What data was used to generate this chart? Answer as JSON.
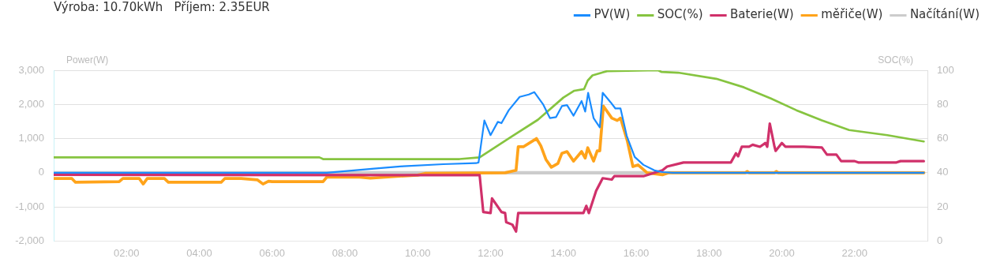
{
  "chart_data": {
    "type": "line",
    "title": "Výroba: 10.70kWh   Příjem: 2.35EUR",
    "ylabel": "Power(W)",
    "y2label": "SOC(%)",
    "xlim": [
      0,
      24
    ],
    "xticks": [
      {
        "value": 2,
        "label": "02:00"
      },
      {
        "value": 4,
        "label": "04:00"
      },
      {
        "value": 6,
        "label": "06:00"
      },
      {
        "value": 8,
        "label": "08:00"
      },
      {
        "value": 10,
        "label": "10:00"
      },
      {
        "value": 12,
        "label": "12:00"
      },
      {
        "value": 14,
        "label": "14:00"
      },
      {
        "value": 16,
        "label": "16:00"
      },
      {
        "value": 18,
        "label": "18:00"
      },
      {
        "value": 20,
        "label": "20:00"
      },
      {
        "value": 22,
        "label": "22:00"
      }
    ],
    "ylim": [
      -2000,
      3000
    ],
    "yticks": [
      {
        "value": -2000,
        "label": "-2,000"
      },
      {
        "value": -1000,
        "label": "-1,000"
      },
      0,
      {
        "value": 1000,
        "label": "1,000"
      },
      {
        "value": 2000,
        "label": "2,000"
      },
      {
        "value": 3000,
        "label": "3,000"
      }
    ],
    "y2lim": [
      0,
      100
    ],
    "y2ticks": [
      0,
      20,
      40,
      60,
      80,
      100
    ],
    "grid": "y",
    "legend": "top right",
    "marker": "none",
    "line_style": "solid",
    "series": [
      {
        "name": "PV(W)",
        "color": "#1a8cff",
        "x": [
          0,
          7.5,
          8.8,
          9.6,
          10.7,
          11.6,
          11.67,
          11.83,
          12.0,
          12.2,
          12.3,
          12.5,
          12.8,
          13.05,
          13.2,
          13.45,
          13.63,
          13.8,
          13.96,
          14.1,
          14.28,
          14.5,
          14.6,
          14.68,
          14.83,
          15.0,
          15.08,
          15.3,
          15.43,
          15.57,
          15.74,
          15.96,
          16.2,
          16.5,
          16.72,
          17.0,
          23.9
        ],
        "values": [
          0,
          0,
          120,
          190,
          250,
          280,
          300,
          1530,
          1100,
          1490,
          1450,
          1830,
          2220,
          2290,
          2360,
          1990,
          1600,
          1630,
          1950,
          1980,
          1670,
          2100,
          1790,
          2340,
          1600,
          1330,
          2340,
          2060,
          1880,
          1880,
          1080,
          460,
          230,
          70,
          20,
          0,
          0
        ]
      },
      {
        "name": "SOC(%)",
        "color": "#86c440",
        "axis": "y2",
        "x": [
          0,
          7.3,
          7.4,
          11.15,
          11.7,
          12.6,
          13.3,
          14.0,
          14.3,
          14.57,
          14.67,
          14.8,
          15.2,
          16.6,
          16.7,
          17.15,
          18.2,
          18.96,
          19.7,
          20.4,
          21.1,
          21.85,
          22.9,
          23.9
        ],
        "values": [
          49,
          49,
          48,
          48,
          49,
          61.5,
          71,
          84,
          88,
          89,
          94,
          97,
          99.5,
          100,
          99,
          98.6,
          95,
          90,
          83.5,
          76.6,
          70.7,
          65,
          62,
          58.3
        ]
      },
      {
        "name": "Baterie(W)",
        "color": "#d0306a",
        "x": [
          0,
          11.7,
          11.8,
          12.0,
          12.04,
          12.3,
          12.4,
          12.43,
          12.6,
          12.7,
          12.76,
          13.3,
          14.55,
          14.63,
          14.7,
          14.9,
          15.08,
          15.33,
          15.4,
          16.2,
          16.72,
          16.85,
          17.3,
          18.6,
          18.74,
          18.8,
          18.9,
          19.1,
          19.2,
          19.4,
          19.55,
          19.6,
          19.67,
          19.8,
          19.83,
          20.0,
          20.1,
          20.6,
          21.1,
          21.24,
          21.5,
          21.63,
          22.0,
          22.1,
          23.15,
          23.26,
          23.9
        ],
        "values": [
          -60,
          -70,
          -1150,
          -1180,
          -750,
          -1150,
          -1180,
          -1450,
          -1520,
          -1720,
          -1180,
          -1180,
          -1180,
          -970,
          -1180,
          -530,
          -160,
          -200,
          -100,
          -100,
          70,
          180,
          300,
          300,
          570,
          480,
          760,
          760,
          820,
          760,
          870,
          760,
          1440,
          760,
          640,
          870,
          760,
          760,
          740,
          530,
          530,
          340,
          340,
          300,
          300,
          340,
          340
        ]
      },
      {
        "name": "měřiče(W)",
        "color": "#ffa31a",
        "x": [
          0,
          0.5,
          0.6,
          1.8,
          1.9,
          2.35,
          2.46,
          2.57,
          3.04,
          3.15,
          4.6,
          4.7,
          5.15,
          5.6,
          5.75,
          5.9,
          6.0,
          7.4,
          7.5,
          8.4,
          8.7,
          9.5,
          10.0,
          10.2,
          12.4,
          12.7,
          12.76,
          12.9,
          13.26,
          13.38,
          13.52,
          13.67,
          13.85,
          13.96,
          14.1,
          14.28,
          14.5,
          14.6,
          14.67,
          14.83,
          14.93,
          15.0,
          15.1,
          15.33,
          15.48,
          15.57,
          15.76,
          15.91,
          16.05,
          16.3,
          16.72,
          16.9,
          19.0,
          19.05,
          19.1,
          19.8,
          19.85,
          19.9,
          23.9
        ],
        "values": [
          -170,
          -170,
          -280,
          -260,
          -170,
          -170,
          -330,
          -170,
          -170,
          -280,
          -280,
          -170,
          -170,
          -210,
          -330,
          -250,
          -260,
          -260,
          -130,
          -130,
          -160,
          -100,
          -70,
          -20,
          0,
          70,
          760,
          760,
          1000,
          790,
          390,
          160,
          270,
          570,
          620,
          340,
          620,
          430,
          730,
          340,
          640,
          640,
          1950,
          1600,
          1530,
          1600,
          920,
          180,
          230,
          0,
          -60,
          0,
          0,
          40,
          0,
          0,
          40,
          0,
          0
        ]
      },
      {
        "name": "Načítání(W)",
        "color": "#cccccc",
        "x": [
          0,
          23.9
        ],
        "values": [
          0,
          0
        ]
      }
    ]
  }
}
